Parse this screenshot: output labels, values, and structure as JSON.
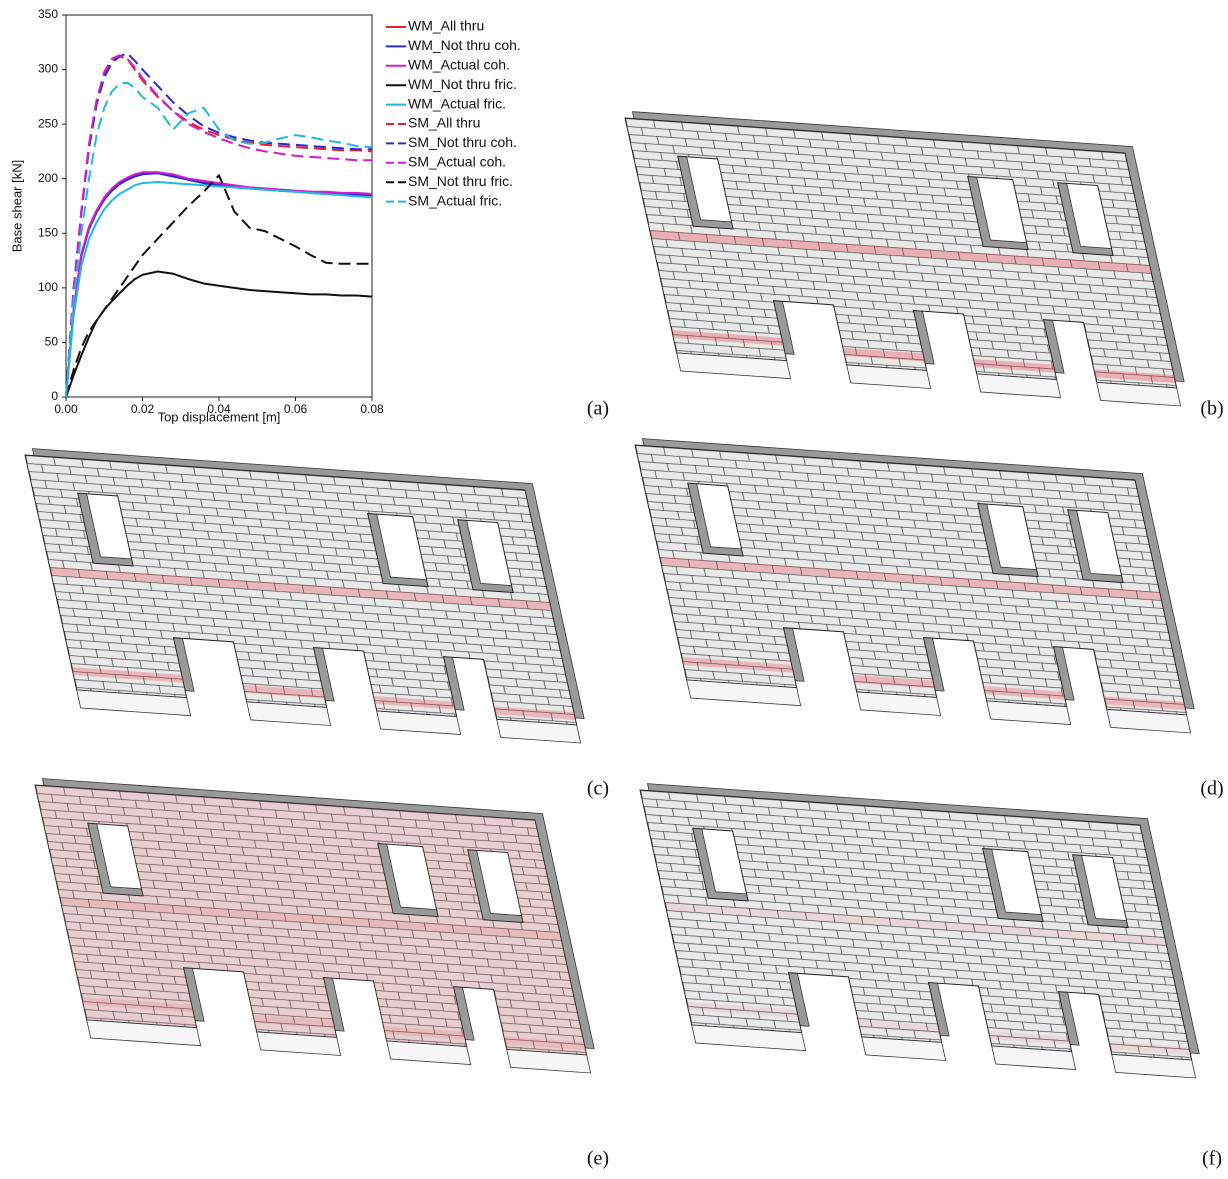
{
  "chart_data": {
    "type": "line",
    "xlabel": "Top displacement [m]",
    "ylabel": "Base shear [kN]",
    "x": [
      0,
      0.002,
      0.004,
      0.006,
      0.008,
      0.01,
      0.012,
      0.014,
      0.016,
      0.018,
      0.02,
      0.024,
      0.028,
      0.032,
      0.036,
      0.04,
      0.044,
      0.048,
      0.052,
      0.056,
      0.06,
      0.064,
      0.068,
      0.072,
      0.076,
      0.08
    ],
    "xlim": [
      0,
      0.08
    ],
    "xticks": [
      {
        "value": 0,
        "label": "0.00"
      },
      0.02,
      0.04,
      0.06,
      0.08
    ],
    "ylim": [
      0,
      350
    ],
    "yticks": [
      0,
      50,
      100,
      150,
      200,
      250,
      300,
      350
    ],
    "legend": "outside-right",
    "series": [
      {
        "name": "WM_All thru",
        "color": "#e8202a",
        "linestyle": "solid",
        "values": [
          0,
          80,
          130,
          155,
          170,
          182,
          190,
          196,
          200,
          203,
          205,
          206,
          203,
          200,
          197,
          195,
          193,
          192,
          191,
          190,
          189,
          188,
          187,
          187,
          186,
          186
        ]
      },
      {
        "name": "WM_Not thru coh.",
        "color": "#2a2ad0",
        "linestyle": "solid",
        "values": [
          0,
          79,
          129,
          154,
          169,
          181,
          189,
          195,
          199,
          202,
          204,
          205,
          202,
          199,
          196,
          194,
          192,
          191,
          190,
          189,
          188,
          187,
          186,
          186,
          185,
          185
        ]
      },
      {
        "name": "WM_Actual coh.",
        "color": "#d41ccf",
        "linestyle": "solid",
        "values": [
          0,
          81,
          131,
          156,
          171,
          183,
          191,
          197,
          201,
          204,
          206,
          206,
          204,
          200,
          198,
          196,
          194,
          192,
          191,
          190,
          189,
          188,
          188,
          187,
          187,
          186
        ]
      },
      {
        "name": "WM_Not thru fric.",
        "color": "#111111",
        "linestyle": "solid",
        "values": [
          0,
          20,
          38,
          55,
          70,
          80,
          88,
          95,
          102,
          108,
          112,
          115,
          113,
          108,
          104,
          102,
          100,
          98,
          97,
          96,
          95,
          94,
          94,
          93,
          93,
          92
        ]
      },
      {
        "name": "WM_Actual fric.",
        "color": "#1fb8e0",
        "linestyle": "solid",
        "values": [
          0,
          75,
          120,
          145,
          160,
          172,
          180,
          186,
          190,
          194,
          196,
          197,
          196,
          195,
          194,
          193,
          192,
          191,
          190,
          189,
          188,
          187,
          186,
          185,
          184,
          183
        ]
      },
      {
        "name": "SM_All thru",
        "color": "#e8202a",
        "linestyle": "dashed",
        "values": [
          0,
          100,
          170,
          230,
          270,
          295,
          308,
          312,
          310,
          300,
          290,
          275,
          262,
          252,
          245,
          240,
          236,
          233,
          231,
          230,
          229,
          228,
          227,
          226,
          226,
          225
        ]
      },
      {
        "name": "SM_Not thru coh.",
        "color": "#2a2ad0",
        "linestyle": "dashed",
        "values": [
          0,
          100,
          168,
          228,
          268,
          293,
          306,
          312,
          315,
          308,
          300,
          285,
          270,
          258,
          248,
          242,
          238,
          235,
          233,
          232,
          231,
          230,
          229,
          228,
          227,
          227
        ]
      },
      {
        "name": "SM_Actual coh.",
        "color": "#d41ccf",
        "linestyle": "dashed",
        "values": [
          0,
          100,
          170,
          232,
          272,
          298,
          310,
          313,
          310,
          302,
          292,
          276,
          262,
          250,
          243,
          237,
          232,
          228,
          225,
          223,
          221,
          220,
          219,
          218,
          217,
          217
        ]
      },
      {
        "name": "SM_Not thru fric.",
        "color": "#111111",
        "linestyle": "dashed",
        "values": [
          0,
          25,
          45,
          60,
          70,
          80,
          90,
          100,
          110,
          120,
          130,
          145,
          160,
          175,
          188,
          203,
          170,
          155,
          152,
          145,
          138,
          130,
          123,
          122,
          122,
          122
        ]
      },
      {
        "name": "SM_Actual fric.",
        "color": "#1fb8e0",
        "linestyle": "dashed",
        "values": [
          0,
          90,
          150,
          200,
          240,
          265,
          280,
          287,
          288,
          283,
          275,
          265,
          245,
          260,
          265,
          245,
          235,
          232,
          233,
          237,
          240,
          238,
          235,
          233,
          230,
          229
        ]
      }
    ]
  },
  "panels": [
    "(a)",
    "(b)",
    "(c)",
    "(d)",
    "(e)",
    "(f)"
  ]
}
